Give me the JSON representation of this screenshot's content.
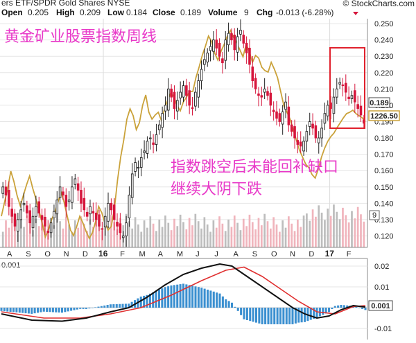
{
  "header": {
    "series_label": "ers ETF/SPDR Gold Shares NYSE",
    "brand": "© StockCharts.com",
    "quote": [
      {
        "label": "Open",
        "value": "0.205"
      },
      {
        "label": "High",
        "value": "0.209"
      },
      {
        "label": "Low",
        "value": "0.184"
      },
      {
        "label": "Close",
        "value": "0.189"
      },
      {
        "label": "Volume",
        "value": "9"
      },
      {
        "label": "Chg",
        "value": "-0.013 (-6.28%)"
      }
    ]
  },
  "annotations": {
    "title": "黄金矿业股票指数周线",
    "note_line1": "指数跳空后未能回补缺口",
    "note_line2": "继续大阴下跌"
  },
  "colors": {
    "up": "#222222",
    "down": "#d6163c",
    "overlay": "#caa23a",
    "macd": "#111111",
    "signal": "#e03030",
    "histogram": "#3a8fd0",
    "highlight_box": "#e0202c",
    "title_text": "#e838c8",
    "note_text": "#e838c8",
    "volume_up": "#bdbdbd",
    "volume_down": "#f0b4bc"
  },
  "chart_data": [
    {
      "type": "candlestick",
      "panel": "price",
      "ylim": [
        0.113,
        0.253
      ],
      "yticks": [
        "0.250",
        "0.240",
        "0.230",
        "0.220",
        "0.210",
        "0.200",
        "0.190",
        "0.180",
        "0.170",
        "0.160",
        "0.150",
        "0.140",
        "0.130",
        "0.120"
      ],
      "x_labels": [
        "A",
        "S",
        "O",
        "N",
        "D",
        "16",
        "F",
        "M",
        "A",
        "M",
        "J",
        "J",
        "A",
        "S",
        "O",
        "N",
        "D",
        "17",
        "F"
      ],
      "x_labels_bold": [
        "16",
        "17"
      ],
      "close_badge": "0.189",
      "overlay_badge": "1226.50",
      "volume_badge": "9",
      "close_series": [
        0.15,
        0.145,
        0.138,
        0.132,
        0.126,
        0.13,
        0.136,
        0.14,
        0.134,
        0.128,
        0.132,
        0.138,
        0.134,
        0.13,
        0.126,
        0.122,
        0.128,
        0.135,
        0.142,
        0.15,
        0.145,
        0.138,
        0.142,
        0.15,
        0.155,
        0.148,
        0.14,
        0.136,
        0.132,
        0.138,
        0.134,
        0.13,
        0.126,
        0.124,
        0.132,
        0.14,
        0.136,
        0.13,
        0.126,
        0.122,
        0.12,
        0.128,
        0.145,
        0.158,
        0.165,
        0.162,
        0.168,
        0.172,
        0.178,
        0.18,
        0.176,
        0.182,
        0.188,
        0.195,
        0.2,
        0.21,
        0.205,
        0.198,
        0.203,
        0.208,
        0.212,
        0.206,
        0.2,
        0.198,
        0.208,
        0.215,
        0.222,
        0.228,
        0.232,
        0.236,
        0.24,
        0.235,
        0.23,
        0.226,
        0.24,
        0.244,
        0.24,
        0.234,
        0.242,
        0.246,
        0.238,
        0.232,
        0.225,
        0.215,
        0.21,
        0.206,
        0.205,
        0.21,
        0.206,
        0.2,
        0.196,
        0.192,
        0.19,
        0.196,
        0.202,
        0.188,
        0.184,
        0.18,
        0.176,
        0.175,
        0.178,
        0.184,
        0.19,
        0.186,
        0.18,
        0.18,
        0.186,
        0.195,
        0.2,
        0.198,
        0.205,
        0.21,
        0.214,
        0.212,
        0.208,
        0.204,
        0.206,
        0.202,
        0.198,
        0.194,
        0.189
      ],
      "overlay_series": [
        1090,
        1110,
        1130,
        1155,
        1140,
        1120,
        1105,
        1120,
        1135,
        1148,
        1130,
        1115,
        1098,
        1080,
        1060,
        1070,
        1085,
        1095,
        1110,
        1125,
        1110,
        1090,
        1070,
        1062,
        1075,
        1090,
        1080,
        1068,
        1058,
        1066,
        1082,
        1104,
        1095,
        1080,
        1070,
        1075,
        1100,
        1142,
        1175,
        1200,
        1230,
        1245,
        1235,
        1215,
        1225,
        1250,
        1265,
        1240,
        1230,
        1236,
        1240,
        1228,
        1245,
        1258,
        1268,
        1262,
        1250,
        1242,
        1255,
        1262,
        1270,
        1270,
        1290,
        1305,
        1322,
        1335,
        1350,
        1342,
        1325,
        1315,
        1328,
        1338,
        1350,
        1358,
        1348,
        1340,
        1330,
        1320,
        1338,
        1328,
        1312,
        1322,
        1318,
        1305,
        1300,
        1298,
        1312,
        1302,
        1290,
        1270,
        1250,
        1240,
        1230,
        1215,
        1200,
        1185,
        1175,
        1165,
        1160,
        1150,
        1145,
        1158,
        1175,
        1188,
        1198,
        1205,
        1210,
        1218,
        1225,
        1232,
        1238,
        1240,
        1243,
        1238,
        1235,
        1232,
        1226.5
      ],
      "overlay_range": [
        1045,
        1375
      ],
      "volume_max": 10
    },
    {
      "type": "macd",
      "panel": "indicator",
      "header_label": "0.001",
      "ylim": [
        -0.014,
        0.022
      ],
      "yticks": [
        "0.02",
        "0.01",
        "-0.01"
      ],
      "value_badge": "0.001",
      "macd_points": [
        [
          0,
          -0.003
        ],
        [
          10,
          -0.006
        ],
        [
          20,
          -0.0065
        ],
        [
          28,
          -0.005
        ],
        [
          36,
          -0.002
        ],
        [
          42,
          0.0
        ],
        [
          48,
          0.005
        ],
        [
          54,
          0.011
        ],
        [
          60,
          0.016
        ],
        [
          66,
          0.019
        ],
        [
          72,
          0.021
        ],
        [
          76,
          0.02
        ],
        [
          80,
          0.016
        ],
        [
          86,
          0.01
        ],
        [
          92,
          0.004
        ],
        [
          96,
          0.0
        ],
        [
          100,
          -0.003
        ],
        [
          104,
          -0.005
        ],
        [
          108,
          -0.004
        ],
        [
          112,
          -0.001
        ],
        [
          116,
          0.001
        ],
        [
          120,
          0.0003
        ]
      ],
      "signal_points": [
        [
          0,
          -0.002
        ],
        [
          14,
          -0.005
        ],
        [
          26,
          -0.005
        ],
        [
          36,
          -0.003
        ],
        [
          46,
          0.0
        ],
        [
          56,
          0.006
        ],
        [
          66,
          0.013
        ],
        [
          74,
          0.018
        ],
        [
          80,
          0.0195
        ],
        [
          86,
          0.015
        ],
        [
          92,
          0.009
        ],
        [
          98,
          0.003
        ],
        [
          104,
          -0.002
        ],
        [
          110,
          -0.003
        ],
        [
          116,
          0.0005
        ],
        [
          120,
          0.001
        ]
      ]
    }
  ]
}
